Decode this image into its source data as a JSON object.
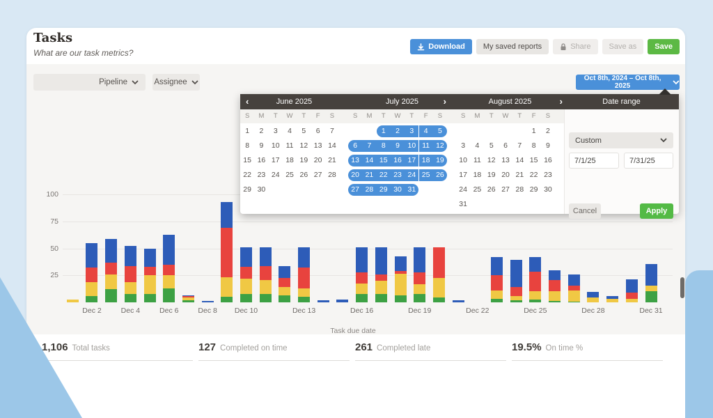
{
  "header": {
    "title": "Tasks",
    "subtitle": "What are our task metrics?"
  },
  "toolbar": {
    "download": "Download",
    "saved_reports": "My saved reports",
    "share": "Share",
    "save_as": "Save as",
    "save": "Save"
  },
  "filters": {
    "pipeline": "Pipeline",
    "assignee": "Assignee"
  },
  "date_range_button": "Oct 8th, 2024 – Oct 8th, 2025",
  "calendar": {
    "weekdays": [
      "S",
      "M",
      "T",
      "W",
      "T",
      "F",
      "S"
    ],
    "months": [
      {
        "label": "June 2025",
        "start_offset": 0,
        "days": 30,
        "selected_from": null,
        "selected_to": null,
        "nav_left": "‹",
        "nav_right": null
      },
      {
        "label": "July 2025",
        "start_offset": 2,
        "days": 31,
        "selected_from": 1,
        "selected_to": 31,
        "nav_left": null,
        "nav_right": "›"
      },
      {
        "label": "August 2025",
        "start_offset": 5,
        "days": 31,
        "selected_from": null,
        "selected_to": null,
        "nav_left": null,
        "nav_right": "›"
      }
    ],
    "panel": {
      "title": "Date range",
      "preset": "Custom",
      "start_value": "7/1/25",
      "end_value": "7/31/25",
      "cancel": "Cancel",
      "apply": "Apply"
    }
  },
  "chart_data": {
    "type": "bar",
    "stacked": true,
    "title": "",
    "xlabel": "Task due date",
    "ylabel": "",
    "ylim": [
      0,
      111
    ],
    "y_ticks": [
      25,
      50,
      75,
      100
    ],
    "grid": true,
    "legend": false,
    "categories": [
      "Dec 1",
      "Dec 2",
      "Dec 3",
      "Dec 4",
      "Dec 5",
      "Dec 6",
      "Dec 7",
      "Dec 8",
      "Dec 9",
      "Dec 10",
      "Dec 11",
      "Dec 12",
      "Dec 13",
      "Dec 14",
      "Dec 15",
      "Dec 16",
      "Dec 17",
      "Dec 18",
      "Dec 19",
      "Dec 20",
      "Dec 21",
      "Dec 22",
      "Dec 23",
      "Dec 24",
      "Dec 25",
      "Dec 26",
      "Dec 27",
      "Dec 28",
      "Dec 29",
      "Dec 30",
      "Dec 31"
    ],
    "x_tick_labels": [
      "Dec 2",
      "Dec 4",
      "Dec 6",
      "Dec 8",
      "Dec 10",
      "Dec 13",
      "Dec 16",
      "Dec 19",
      "Dec 22",
      "Dec 25",
      "Dec 28",
      "Dec 31"
    ],
    "series": [
      {
        "name": "green",
        "color": "#3da144",
        "values": [
          0,
          6,
          12,
          8,
          8,
          13,
          2,
          0,
          5,
          8,
          7.7,
          6.5,
          5,
          0,
          0,
          7.7,
          7.7,
          6.7,
          7.7,
          4.5,
          0,
          0,
          3.2,
          2,
          2.6,
          1.3,
          0.6,
          0,
          0,
          0,
          10.3
        ]
      },
      {
        "name": "yellow",
        "color": "#f0c844",
        "values": [
          2.5,
          13,
          14,
          11,
          17,
          12,
          2.5,
          0,
          18,
          14,
          13,
          7.5,
          8,
          0,
          0,
          9.7,
          12.3,
          19.8,
          9,
          18,
          0,
          0,
          7.8,
          4,
          7.7,
          9,
          10.4,
          4.5,
          3.2,
          3.2,
          5.2
        ]
      },
      {
        "name": "red",
        "color": "#e8433e",
        "values": [
          0,
          13,
          11,
          14.5,
          8,
          10,
          1,
          0,
          46,
          11,
          13,
          8.5,
          19,
          0,
          0,
          10.3,
          5.8,
          2.5,
          11,
          28.5,
          0,
          0,
          14,
          8.4,
          18,
          10.3,
          4.5,
          0,
          0,
          5.8,
          0
        ]
      },
      {
        "name": "blue",
        "color": "#2d5cb8",
        "values": [
          0,
          23,
          22,
          18.5,
          17,
          27.5,
          1,
          1.5,
          24,
          18,
          17.3,
          11,
          19,
          2,
          2.5,
          23.3,
          25.2,
          13.5,
          23.3,
          0,
          2,
          0,
          17,
          25,
          13.7,
          9.4,
          10.5,
          5.2,
          2.6,
          12.3,
          20
        ]
      }
    ]
  },
  "stats": [
    {
      "value": "1,106",
      "label": "Total tasks"
    },
    {
      "value": "127",
      "label": "Completed on time"
    },
    {
      "value": "261",
      "label": "Completed late"
    },
    {
      "value": "19.5%",
      "label": "On time %"
    }
  ]
}
